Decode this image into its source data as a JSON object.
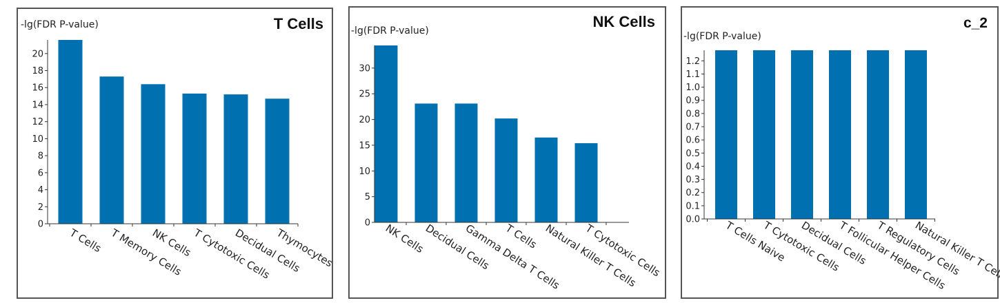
{
  "chart_data": [
    {
      "type": "bar",
      "title": "T Cells",
      "ylabel": "-lg(FDR P-value)",
      "xlabel": "",
      "categories": [
        "T Cells",
        "T Memory Cells",
        "NK Cells",
        "T Cytotoxic Cells",
        "Decidual Cells",
        "Thymocytes"
      ],
      "values": [
        21.6,
        17.3,
        16.4,
        15.3,
        15.2,
        14.7
      ],
      "ylim": [
        0,
        21.6
      ],
      "yticks": [
        0,
        2,
        4,
        6,
        8,
        10,
        12,
        14,
        16,
        18,
        20
      ],
      "bar_color": "#0070b0",
      "grid": false
    },
    {
      "type": "bar",
      "title": "NK Cells",
      "ylabel": "-lg(FDR P-value)",
      "xlabel": "",
      "categories": [
        "NK Cells",
        "Decidual Cells",
        "Gamma Delta T Cells",
        "T Cells",
        "Natural Killer T Cells",
        "T Cytotoxic Cells"
      ],
      "values": [
        34.4,
        23.1,
        23.1,
        20.2,
        16.5,
        15.4
      ],
      "ylim": [
        0,
        34.4
      ],
      "yticks": [
        0,
        5,
        10,
        15,
        20,
        25,
        30
      ],
      "bar_color": "#0070b0",
      "grid": false
    },
    {
      "type": "bar",
      "title": "c_2",
      "ylabel": "-lg(FDR P-value)",
      "xlabel": "",
      "categories": [
        "T Cells Naive",
        "T Cytotoxic Cells",
        "Decidual Cells",
        "T Follicular Helper Cells",
        "T Regulatory Cells",
        "Natural Killer T Cells"
      ],
      "values": [
        1.28,
        1.28,
        1.28,
        1.28,
        1.28,
        1.28
      ],
      "ylim": [
        0,
        1.28
      ],
      "yticks": [
        0.0,
        0.1,
        0.2,
        0.3,
        0.4,
        0.5,
        0.6,
        0.7,
        0.8,
        0.9,
        1.0,
        1.1,
        1.2
      ],
      "bar_color": "#0070b0",
      "grid": false
    }
  ]
}
